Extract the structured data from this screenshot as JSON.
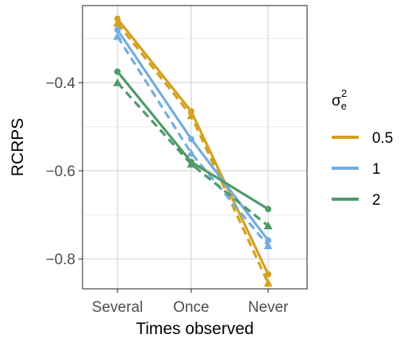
{
  "chart_data": {
    "type": "line",
    "categories": [
      "Several",
      "Once",
      "Never"
    ],
    "xlabel": "Times observed",
    "ylabel": "RCRPS",
    "ylim": [
      -0.868,
      -0.225
    ],
    "y_ticks": [
      -0.4,
      -0.6,
      -0.8
    ],
    "y_tick_labels": [
      "−0.4",
      "−0.6",
      "−0.8"
    ],
    "grid": true,
    "legend": {
      "title_base": "σ",
      "title_sup": "2",
      "title_sub": "e",
      "placement": "right"
    },
    "line_styles": [
      {
        "style": "solid",
        "marker": "circle"
      },
      {
        "style": "dashed",
        "marker": "triangle"
      }
    ],
    "series": [
      {
        "name": "0.5",
        "color": "#D4A020",
        "solid": [
          -0.255,
          -0.465,
          -0.835
        ],
        "dashed": [
          -0.265,
          -0.475,
          -0.855
        ]
      },
      {
        "name": "1",
        "color": "#73ADDE",
        "solid": [
          -0.28,
          -0.528,
          -0.758
        ],
        "dashed": [
          -0.295,
          -0.56,
          -0.77
        ]
      },
      {
        "name": "2",
        "color": "#4E9A6A",
        "solid": [
          -0.375,
          -0.58,
          -0.687
        ],
        "dashed": [
          -0.4,
          -0.585,
          -0.725
        ]
      }
    ]
  }
}
